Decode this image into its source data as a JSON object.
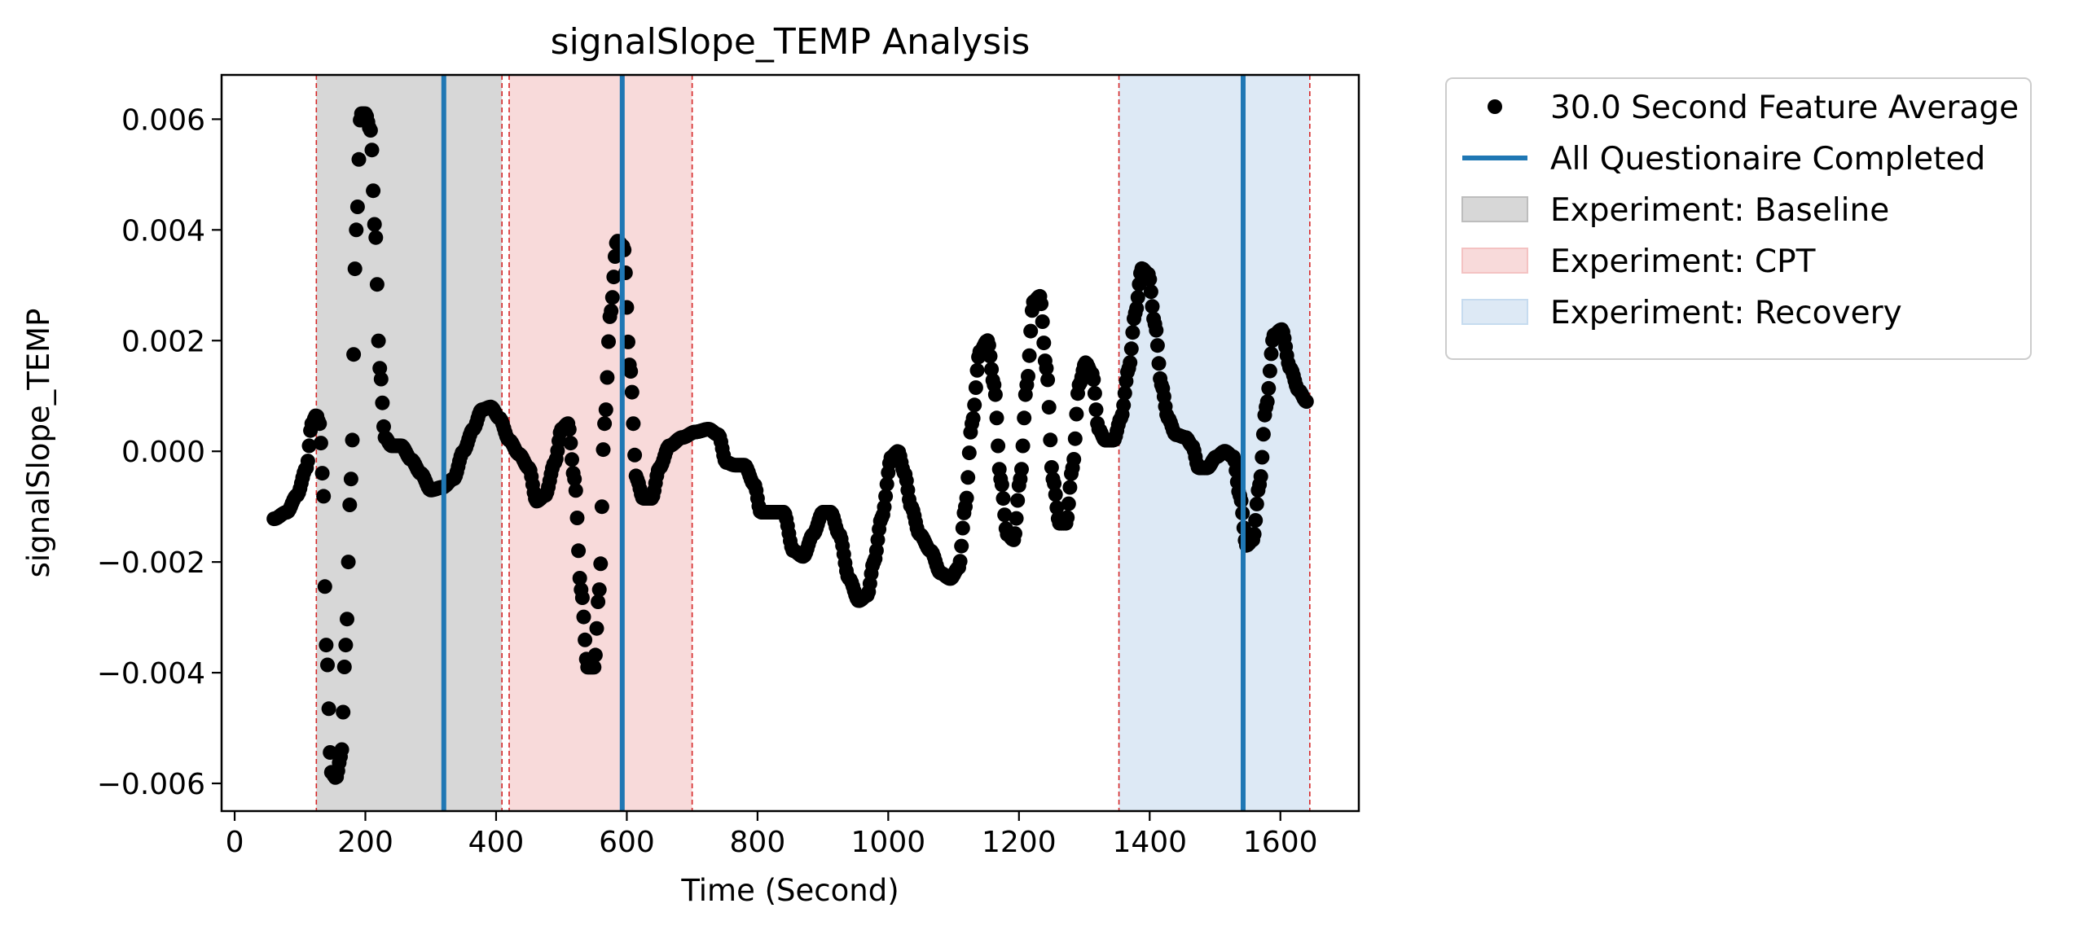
{
  "chart_data": {
    "type": "scatter",
    "title": "signalSlope_TEMP Analysis",
    "xlabel": "Time (Second)",
    "ylabel": "signalSlope_TEMP",
    "xlim": [
      -20,
      1720
    ],
    "ylim": [
      -0.0065,
      0.0068
    ],
    "xticks": [
      0,
      200,
      400,
      600,
      800,
      1000,
      1200,
      1400,
      1600
    ],
    "xtick_labels": [
      "0",
      "200",
      "400",
      "600",
      "800",
      "1000",
      "1200",
      "1400",
      "1600"
    ],
    "yticks": [
      -0.006,
      -0.004,
      -0.002,
      0.0,
      0.002,
      0.004,
      0.006
    ],
    "ytick_labels": [
      "−0.006",
      "−0.004",
      "−0.002",
      "0.000",
      "0.002",
      "0.004",
      "0.006"
    ],
    "grid": false,
    "legend_placement": "outside-top-right",
    "series": [
      {
        "name": "30.0 Second Feature Average",
        "kind": "scatter",
        "color": "#000000",
        "keypoints": [
          [
            60,
            -0.00122
          ],
          [
            80,
            -0.0011
          ],
          [
            95,
            -0.0008
          ],
          [
            110,
            -0.0003
          ],
          [
            118,
            0.0005
          ],
          [
            125,
            0.00065
          ],
          [
            130,
            0.0005
          ],
          [
            135,
            -0.0005
          ],
          [
            140,
            -0.0035
          ],
          [
            148,
            -0.0058
          ],
          [
            155,
            -0.0059
          ],
          [
            163,
            -0.0055
          ],
          [
            170,
            -0.0035
          ],
          [
            178,
            -0.0005
          ],
          [
            186,
            0.004
          ],
          [
            193,
            0.0061
          ],
          [
            200,
            0.0061
          ],
          [
            208,
            0.0058
          ],
          [
            215,
            0.004
          ],
          [
            222,
            0.0015
          ],
          [
            230,
            0.00025
          ],
          [
            240,
            0.0001
          ],
          [
            255,
            0.0001
          ],
          [
            270,
            -0.00015
          ],
          [
            285,
            -0.0004
          ],
          [
            300,
            -0.0007
          ],
          [
            318,
            -0.00065
          ],
          [
            335,
            -0.0005
          ],
          [
            350,
            0.0
          ],
          [
            365,
            0.0004
          ],
          [
            378,
            0.00075
          ],
          [
            392,
            0.0008
          ],
          [
            405,
            0.0006
          ],
          [
            420,
            0.0002
          ],
          [
            435,
            -5e-05
          ],
          [
            450,
            -0.0003
          ],
          [
            462,
            -0.0009
          ],
          [
            475,
            -0.0008
          ],
          [
            490,
            -0.0002
          ],
          [
            500,
            0.0004
          ],
          [
            510,
            0.0005
          ],
          [
            520,
            -0.0005
          ],
          [
            530,
            -0.0025
          ],
          [
            540,
            -0.0039
          ],
          [
            550,
            -0.0039
          ],
          [
            558,
            -0.0025
          ],
          [
            566,
            0.0005
          ],
          [
            575,
            0.0025
          ],
          [
            585,
            0.0038
          ],
          [
            595,
            0.0037
          ],
          [
            605,
            0.0015
          ],
          [
            615,
            -0.0005
          ],
          [
            625,
            -0.00085
          ],
          [
            638,
            -0.00085
          ],
          [
            650,
            -0.0003
          ],
          [
            665,
            0.0001
          ],
          [
            685,
            0.00025
          ],
          [
            705,
            0.00035
          ],
          [
            725,
            0.0004
          ],
          [
            740,
            0.0003
          ],
          [
            752,
            -0.0002
          ],
          [
            765,
            -0.00025
          ],
          [
            780,
            -0.00025
          ],
          [
            795,
            -0.0006
          ],
          [
            805,
            -0.0011
          ],
          [
            825,
            -0.0011
          ],
          [
            840,
            -0.0011
          ],
          [
            855,
            -0.0018
          ],
          [
            870,
            -0.0019
          ],
          [
            885,
            -0.0015
          ],
          [
            900,
            -0.0011
          ],
          [
            912,
            -0.0011
          ],
          [
            925,
            -0.0015
          ],
          [
            940,
            -0.0023
          ],
          [
            955,
            -0.0027
          ],
          [
            968,
            -0.0026
          ],
          [
            978,
            -0.002
          ],
          [
            990,
            -0.0012
          ],
          [
            1005,
            -0.0001
          ],
          [
            1015,
            0.0
          ],
          [
            1025,
            -0.0004
          ],
          [
            1035,
            -0.001
          ],
          [
            1048,
            -0.0015
          ],
          [
            1065,
            -0.0018
          ],
          [
            1080,
            -0.0022
          ],
          [
            1095,
            -0.0023
          ],
          [
            1108,
            -0.0021
          ],
          [
            1118,
            -0.001
          ],
          [
            1128,
            0.0005
          ],
          [
            1140,
            0.0018
          ],
          [
            1152,
            0.002
          ],
          [
            1162,
            0.0012
          ],
          [
            1172,
            -0.0005
          ],
          [
            1182,
            -0.0015
          ],
          [
            1192,
            -0.0016
          ],
          [
            1202,
            -0.0005
          ],
          [
            1212,
            0.0012
          ],
          [
            1222,
            0.0027
          ],
          [
            1232,
            0.0028
          ],
          [
            1242,
            0.0015
          ],
          [
            1252,
            -0.0005
          ],
          [
            1262,
            -0.0013
          ],
          [
            1272,
            -0.0013
          ],
          [
            1282,
            -0.0003
          ],
          [
            1292,
            0.0012
          ],
          [
            1302,
            0.0016
          ],
          [
            1312,
            0.0014
          ],
          [
            1322,
            0.0004
          ],
          [
            1332,
            0.0002
          ],
          [
            1345,
            0.0002
          ],
          [
            1356,
            0.0006
          ],
          [
            1368,
            0.0015
          ],
          [
            1378,
            0.0025
          ],
          [
            1388,
            0.0033
          ],
          [
            1398,
            0.0032
          ],
          [
            1408,
            0.0023
          ],
          [
            1418,
            0.0012
          ],
          [
            1428,
            0.0006
          ],
          [
            1440,
            0.0003
          ],
          [
            1455,
            0.00025
          ],
          [
            1465,
            0.0001
          ],
          [
            1475,
            -0.0003
          ],
          [
            1488,
            -0.0003
          ],
          [
            1502,
            -0.0001
          ],
          [
            1515,
            0.0
          ],
          [
            1528,
            -0.0001
          ],
          [
            1538,
            -0.0008
          ],
          [
            1548,
            -0.0017
          ],
          [
            1558,
            -0.0016
          ],
          [
            1568,
            -0.0006
          ],
          [
            1578,
            0.0008
          ],
          [
            1590,
            0.0021
          ],
          [
            1602,
            0.0022
          ],
          [
            1615,
            0.0015
          ],
          [
            1628,
            0.0011
          ],
          [
            1640,
            0.0009
          ]
        ]
      },
      {
        "name": "All Questionaire Completed",
        "kind": "vlines",
        "color": "#1f77b4",
        "x": [
          320,
          593,
          1543
        ]
      }
    ],
    "regions": [
      {
        "name": "Experiment: Baseline",
        "x0": 125,
        "x1": 409,
        "color": "#bdbdbd",
        "opacity": 0.6
      },
      {
        "name": "Experiment: CPT",
        "x0": 420,
        "x1": 700,
        "color": "#f4c2c2",
        "opacity": 0.6
      },
      {
        "name": "Experiment: Recovery",
        "x0": 1353,
        "x1": 1645,
        "color": "#c6dbef",
        "opacity": 0.6
      }
    ],
    "boundary_lines": {
      "color": "#d62728",
      "x": [
        125,
        409,
        420,
        700,
        1353,
        1645
      ]
    }
  }
}
